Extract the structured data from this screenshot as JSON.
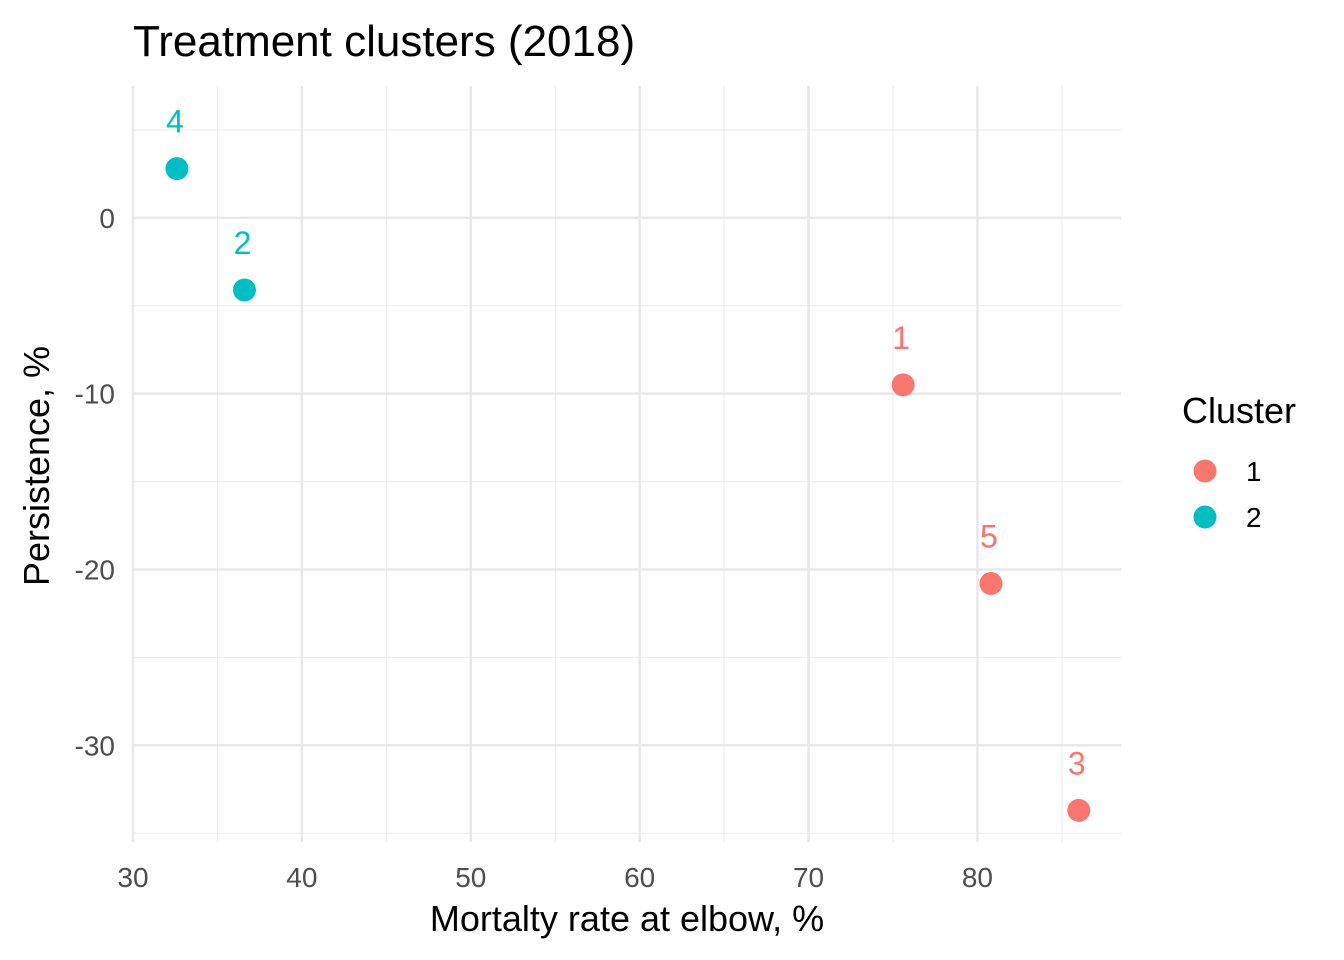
{
  "chart_data": {
    "type": "scatter",
    "title": "Treatment clusters (2018)",
    "xlabel": "Mortalty rate at elbow, %",
    "ylabel": "Persistence, %",
    "xlim": [
      30,
      88.5
    ],
    "ylim": [
      -35.5,
      7.5
    ],
    "x_ticks": [
      30,
      40,
      50,
      60,
      70,
      80
    ],
    "y_ticks": [
      0,
      -10,
      -20,
      -30
    ],
    "x_tick_labels": [
      "30",
      "40",
      "50",
      "60",
      "70",
      "80"
    ],
    "y_tick_labels": [
      "0",
      "-10",
      "-20",
      "-30"
    ],
    "grid": true,
    "legend": {
      "title": "Cluster",
      "position": "right",
      "entries": [
        {
          "label": "1",
          "color": "#F8766D"
        },
        {
          "label": "2",
          "color": "#00BFC4"
        }
      ]
    },
    "points": [
      {
        "label": "4",
        "x": 32.6,
        "y": 2.8,
        "cluster": "2"
      },
      {
        "label": "2",
        "x": 36.6,
        "y": -4.1,
        "cluster": "2"
      },
      {
        "label": "1",
        "x": 75.6,
        "y": -9.5,
        "cluster": "1"
      },
      {
        "label": "5",
        "x": 80.8,
        "y": -20.8,
        "cluster": "1"
      },
      {
        "label": "3",
        "x": 86.0,
        "y": -33.7,
        "cluster": "1"
      }
    ]
  }
}
